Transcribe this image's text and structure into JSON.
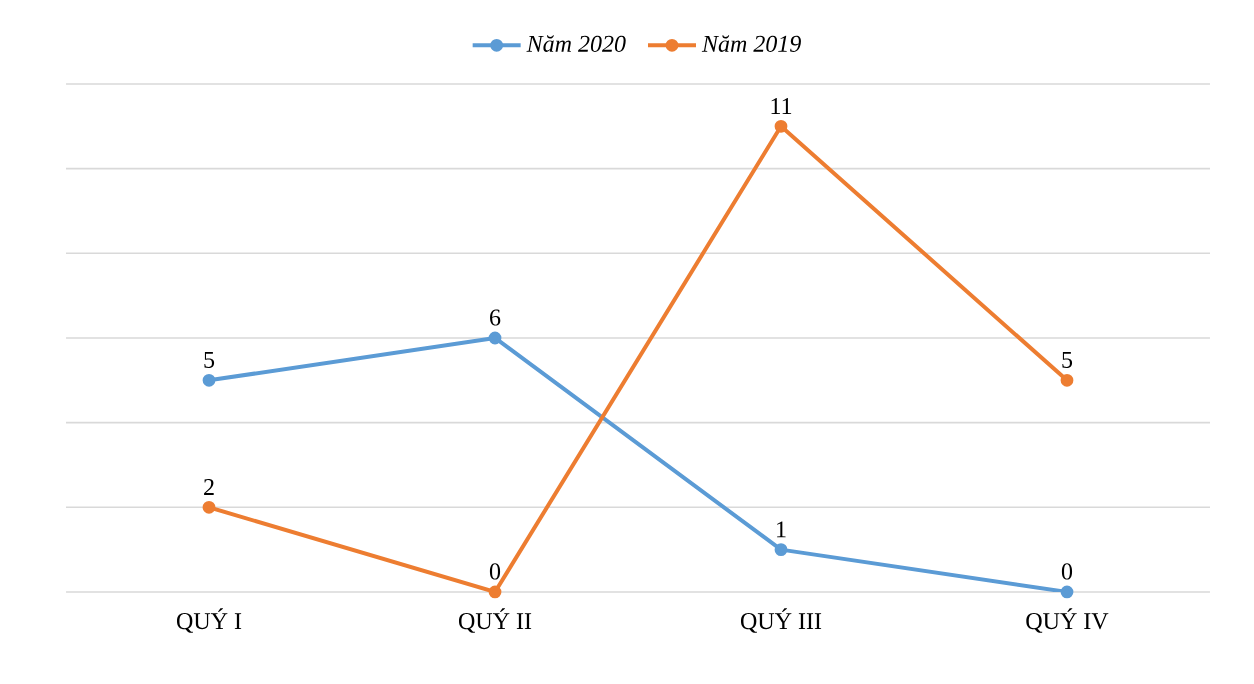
{
  "chart_data": {
    "type": "line",
    "categories": [
      "QUÝ I",
      "QUÝ II",
      "QUÝ III",
      "QUÝ IV"
    ],
    "series": [
      {
        "name": "Năm 2020",
        "color": "#5b9bd5",
        "values": [
          5,
          6,
          1,
          0
        ]
      },
      {
        "name": "Năm 2019",
        "color": "#ed7d31",
        "values": [
          2,
          0,
          11,
          5
        ]
      }
    ],
    "ylim": [
      0,
      12
    ],
    "yticks": [
      {
        "value": 0,
        "label": null
      },
      {
        "value": 2,
        "label": null
      },
      {
        "value": 4,
        "label": null
      },
      {
        "value": 6,
        "label": null
      },
      {
        "value": 8,
        "label": null
      },
      {
        "value": 10,
        "label": null
      },
      {
        "value": 12,
        "label": null
      }
    ],
    "tick_labels": "x",
    "grid": "y",
    "legend": "top",
    "marker": "circle",
    "line_style": "solid",
    "data_labels": true
  }
}
